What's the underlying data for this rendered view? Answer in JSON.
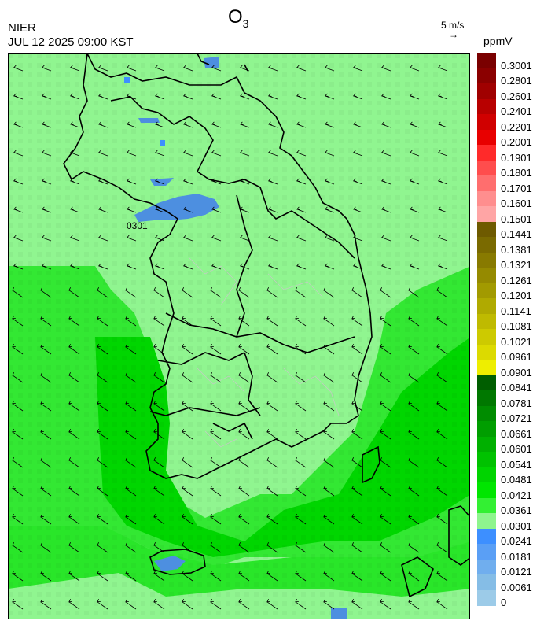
{
  "header": {
    "title_main": "O",
    "title_sub": "3",
    "agency": "NIER",
    "datetime": "JUL 12 2025 09:00 KST",
    "wind_ref_label": "5 m/s",
    "wind_ref_arrow": "→",
    "unit": "ppmV"
  },
  "map": {
    "contour_label": "0301",
    "wind_direction_general": "southwest-flowing (toward lower-left)"
  },
  "legend": {
    "labels": [
      "0.3001",
      "0.2801",
      "0.2601",
      "0.2401",
      "0.2201",
      "0.2001",
      "0.1901",
      "0.1801",
      "0.1701",
      "0.1601",
      "0.1501",
      "0.1441",
      "0.1381",
      "0.1321",
      "0.1261",
      "0.1201",
      "0.1141",
      "0.1081",
      "0.1021",
      "0.0961",
      "0.0901",
      "0.0841",
      "0.0781",
      "0.0721",
      "0.0661",
      "0.0601",
      "0.0541",
      "0.0481",
      "0.0421",
      "0.0361",
      "0.0301",
      "0.0241",
      "0.0181",
      "0.0121",
      "0.0061",
      "0"
    ],
    "colors": [
      "#7a0000",
      "#8b0000",
      "#a00000",
      "#b80000",
      "#d00000",
      "#e80000",
      "#ff2a2a",
      "#ff4d4d",
      "#ff6e6e",
      "#ff8e8e",
      "#ffa5a5",
      "#6e5a00",
      "#7a6a00",
      "#887a00",
      "#958a00",
      "#a29a00",
      "#b0aa00",
      "#bfba00",
      "#cdca00",
      "#dcda00",
      "#eeee00",
      "#005e00",
      "#007800",
      "#008c00",
      "#009e00",
      "#00b000",
      "#00c200",
      "#00d400",
      "#00e600",
      "#33f033",
      "#8ef58e",
      "#3d8fff",
      "#5a9ff5",
      "#70aeee",
      "#85bde6",
      "#9ccbe8"
    ]
  }
}
